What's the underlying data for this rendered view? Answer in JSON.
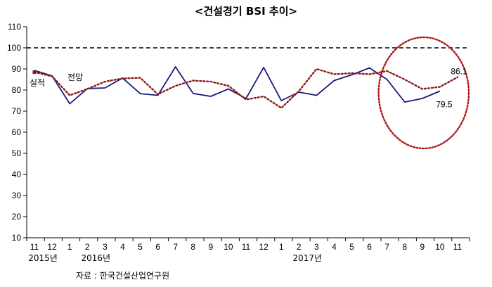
{
  "chart_data": {
    "type": "line",
    "title": "<건설경기 BSI 추이>",
    "categories": [
      "11",
      "12",
      "1",
      "2",
      "3",
      "4",
      "5",
      "6",
      "7",
      "8",
      "9",
      "10",
      "11",
      "12",
      "1",
      "2",
      "3",
      "4",
      "5",
      "6",
      "7",
      "8",
      "9",
      "10",
      "11"
    ],
    "year_labels": [
      {
        "category_index": 0,
        "text": "2015년"
      },
      {
        "category_index": 3,
        "text": "2016년"
      },
      {
        "category_index": 15,
        "text": "2017년"
      }
    ],
    "ylim": [
      10,
      110
    ],
    "yticks": [
      10,
      20,
      30,
      40,
      50,
      60,
      70,
      80,
      90,
      100,
      110
    ],
    "reference_line": {
      "value": 100,
      "style": "dashed",
      "color": "#000000"
    },
    "series": [
      {
        "name": "실적",
        "style": "solid",
        "color": "#1a1a7a",
        "values": [
          89.3,
          86.7,
          73.5,
          80.7,
          81.0,
          85.7,
          78.3,
          77.5,
          91.0,
          78.4,
          77.0,
          80.5,
          76.0,
          90.7,
          75.0,
          79.0,
          77.5,
          84.5,
          87.2,
          90.5,
          85.0,
          74.3,
          76.0,
          79.5,
          null
        ]
      },
      {
        "name": "전망",
        "style": "dotted",
        "color": "#8b1a1a",
        "values": [
          88.5,
          86.5,
          77.5,
          80.5,
          84.0,
          85.5,
          85.8,
          78.0,
          82.0,
          84.5,
          84.0,
          82.0,
          75.5,
          77.0,
          71.5,
          79.5,
          90.0,
          87.5,
          88.0,
          87.5,
          89.0,
          85.0,
          80.5,
          81.5,
          86.1
        ]
      }
    ],
    "series_labels": [
      {
        "series": "실적",
        "text": "실적"
      },
      {
        "series": "전망",
        "text": "전망"
      }
    ],
    "data_labels": [
      {
        "series": "전망",
        "category_index": 24,
        "text": "86.1"
      },
      {
        "series": "실적",
        "category_index": 23,
        "text": "79.5"
      }
    ],
    "annotation": {
      "type": "ellipse",
      "style": "dotted",
      "color": "#b01818",
      "covers_categories": [
        20,
        24
      ]
    },
    "source": "자료 : 한국건설산업연구원",
    "grid": false
  }
}
